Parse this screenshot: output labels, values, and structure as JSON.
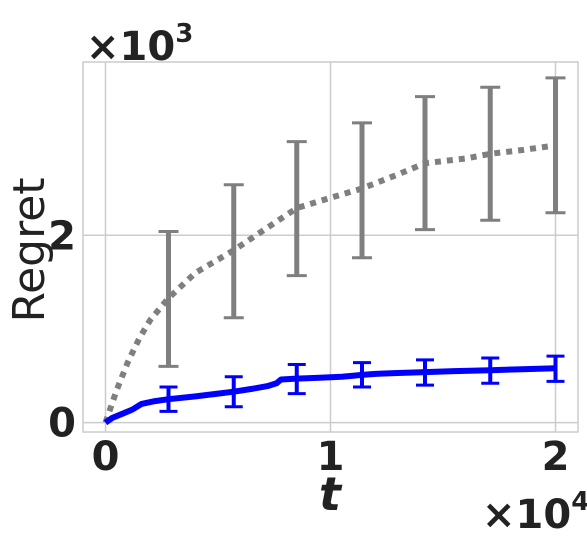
{
  "chart_data": {
    "type": "line",
    "title": "",
    "xlabel": "t",
    "ylabel": "Regret",
    "x_multiplier": {
      "base": "×10",
      "exp": "4"
    },
    "y_multiplier": {
      "base": "×10",
      "exp": "3"
    },
    "xlim": [
      -0.1,
      2.1
    ],
    "ylim": [
      -0.1,
      3.85
    ],
    "x_ticks": [
      0,
      1,
      2
    ],
    "x_tick_labels": [
      "0",
      "1",
      "2"
    ],
    "y_ticks": [
      0,
      2
    ],
    "y_tick_labels": [
      "0",
      "2"
    ],
    "grid": true,
    "legend": "none",
    "series": [
      {
        "color": "#7f7f7f",
        "style": "dotted",
        "x": [
          0,
          0.05,
          0.1,
          0.15,
          0.2,
          0.28,
          0.4,
          0.57,
          0.7,
          0.85,
          1.0,
          1.14,
          1.3,
          1.42,
          1.6,
          1.71,
          1.85,
          2.0
        ],
        "y": [
          0,
          0.35,
          0.65,
          0.9,
          1.1,
          1.33,
          1.6,
          1.84,
          2.05,
          2.29,
          2.4,
          2.5,
          2.65,
          2.77,
          2.82,
          2.87,
          2.91,
          2.96
        ],
        "errorbars": {
          "x": [
            0.28,
            0.57,
            0.85,
            1.14,
            1.42,
            1.71,
            2.0
          ],
          "lower": [
            0.6,
            1.12,
            1.57,
            1.76,
            2.06,
            2.16,
            2.24
          ],
          "upper": [
            2.04,
            2.54,
            3.0,
            3.2,
            3.48,
            3.58,
            3.68
          ]
        }
      },
      {
        "color": "#0000ff",
        "style": "solid",
        "x": [
          0,
          0.03,
          0.08,
          0.12,
          0.16,
          0.22,
          0.28,
          0.4,
          0.5,
          0.57,
          0.65,
          0.72,
          0.76,
          0.78,
          0.85,
          0.95,
          1.05,
          1.1,
          1.14,
          1.2,
          1.3,
          1.42,
          1.55,
          1.71,
          1.85,
          2.0
        ],
        "y": [
          0,
          0.05,
          0.1,
          0.14,
          0.2,
          0.23,
          0.25,
          0.28,
          0.31,
          0.33,
          0.36,
          0.39,
          0.42,
          0.46,
          0.47,
          0.48,
          0.49,
          0.5,
          0.51,
          0.52,
          0.53,
          0.54,
          0.55,
          0.56,
          0.57,
          0.58
        ],
        "errorbars": {
          "x": [
            0.28,
            0.57,
            0.85,
            1.14,
            1.42,
            1.71,
            2.0
          ],
          "lower": [
            0.12,
            0.17,
            0.31,
            0.38,
            0.4,
            0.42,
            0.44
          ],
          "upper": [
            0.38,
            0.49,
            0.62,
            0.64,
            0.67,
            0.69,
            0.71
          ]
        }
      }
    ]
  }
}
